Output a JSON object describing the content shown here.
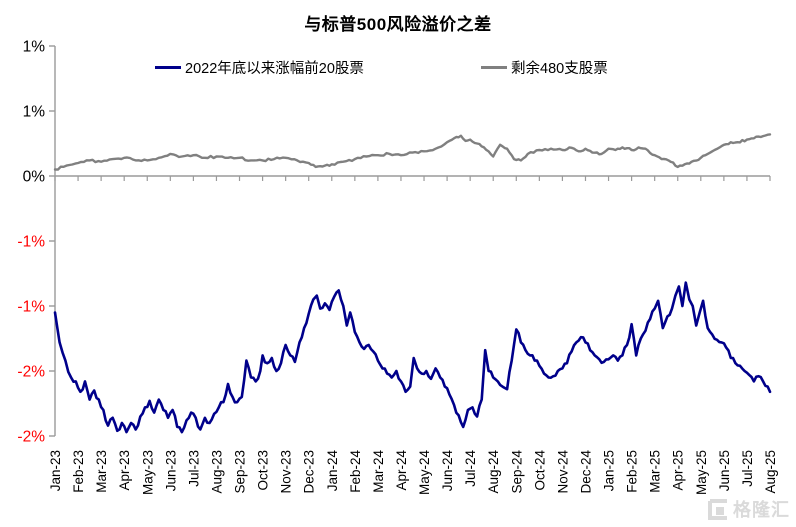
{
  "title": "与标普500风险溢价之差",
  "legend": {
    "items": [
      {
        "label": "2022年底以来涨幅前20股票",
        "color": "#00008B"
      },
      {
        "label": "剩余480支股票",
        "color": "#808080"
      }
    ]
  },
  "watermark": {
    "text": "格隆汇"
  },
  "chart_data": {
    "type": "line",
    "title": "与标普500风险溢价之差",
    "legend_position": "top",
    "grid": false,
    "x_categories": [
      "Jan-23",
      "Feb-23",
      "Mar-23",
      "Apr-23",
      "May-23",
      "Jun-23",
      "Jul-23",
      "Aug-23",
      "Sep-23",
      "Oct-23",
      "Nov-23",
      "Dec-23",
      "Jan-24",
      "Feb-24",
      "Mar-24",
      "Apr-24",
      "May-24",
      "Jun-24",
      "Jul-24",
      "Aug-24",
      "Sep-24",
      "Oct-24",
      "Nov-24",
      "Dec-24",
      "Jan-25",
      "Feb-25",
      "Mar-25",
      "Apr-25",
      "May-25",
      "Jun-25",
      "Jul-25",
      "Aug-25"
    ],
    "y_axis": {
      "min": -2.0,
      "max": 1.0,
      "tick_step": 0.5,
      "unit": "%",
      "axis_color": "#9a9a9a",
      "ticks": [
        {
          "value": 1.0,
          "label": "1%",
          "color": "#000000"
        },
        {
          "value": 0.5,
          "label": "1%",
          "color": "#000000"
        },
        {
          "value": 0.0,
          "label": "0%",
          "color": "#000000"
        },
        {
          "value": -0.5,
          "label": "-1%",
          "color": "#FF0000"
        },
        {
          "value": -1.0,
          "label": "-1%",
          "color": "#FF0000"
        },
        {
          "value": -1.5,
          "label": "-2%",
          "color": "#FF0000"
        },
        {
          "value": -2.0,
          "label": "-2%",
          "color": "#FF0000"
        }
      ]
    },
    "x_axis": {
      "crosses_at_value": 0,
      "tick_interval_months": 1,
      "label_rotation_deg": -90
    },
    "series": [
      {
        "name": "2022年底以来涨幅前20股票",
        "color": "#00008B",
        "width": 2.6,
        "points": [
          [
            0,
            -1.05
          ],
          [
            0.2,
            -1.28
          ],
          [
            0.45,
            -1.42
          ],
          [
            0.7,
            -1.55
          ],
          [
            0.9,
            -1.58
          ],
          [
            1.1,
            -1.66
          ],
          [
            1.3,
            -1.58
          ],
          [
            1.5,
            -1.72
          ],
          [
            1.7,
            -1.65
          ],
          [
            1.9,
            -1.72
          ],
          [
            2.1,
            -1.8
          ],
          [
            2.3,
            -1.92
          ],
          [
            2.5,
            -1.86
          ],
          [
            2.7,
            -1.96
          ],
          [
            2.9,
            -1.9
          ],
          [
            3.1,
            -1.97
          ],
          [
            3.3,
            -1.9
          ],
          [
            3.5,
            -1.95
          ],
          [
            3.7,
            -1.85
          ],
          [
            3.9,
            -1.78
          ],
          [
            4.1,
            -1.73
          ],
          [
            4.3,
            -1.82
          ],
          [
            4.5,
            -1.72
          ],
          [
            4.7,
            -1.8
          ],
          [
            4.9,
            -1.86
          ],
          [
            5.1,
            -1.8
          ],
          [
            5.3,
            -1.93
          ],
          [
            5.5,
            -1.97
          ],
          [
            5.7,
            -1.88
          ],
          [
            5.9,
            -1.82
          ],
          [
            6.1,
            -1.86
          ],
          [
            6.3,
            -1.95
          ],
          [
            6.5,
            -1.86
          ],
          [
            6.7,
            -1.9
          ],
          [
            6.9,
            -1.83
          ],
          [
            7.1,
            -1.78
          ],
          [
            7.3,
            -1.74
          ],
          [
            7.5,
            -1.6
          ],
          [
            7.7,
            -1.7
          ],
          [
            7.9,
            -1.74
          ],
          [
            8.1,
            -1.7
          ],
          [
            8.3,
            -1.42
          ],
          [
            8.5,
            -1.55
          ],
          [
            8.7,
            -1.58
          ],
          [
            8.9,
            -1.5
          ],
          [
            9.0,
            -1.38
          ],
          [
            9.2,
            -1.44
          ],
          [
            9.4,
            -1.4
          ],
          [
            9.6,
            -1.5
          ],
          [
            9.8,
            -1.44
          ],
          [
            10.0,
            -1.3
          ],
          [
            10.2,
            -1.38
          ],
          [
            10.4,
            -1.43
          ],
          [
            10.6,
            -1.28
          ],
          [
            10.8,
            -1.17
          ],
          [
            11.0,
            -1.06
          ],
          [
            11.2,
            -0.95
          ],
          [
            11.35,
            -0.92
          ],
          [
            11.5,
            -1.02
          ],
          [
            11.7,
            -0.98
          ],
          [
            11.9,
            -1.03
          ],
          [
            12.1,
            -0.93
          ],
          [
            12.3,
            -0.88
          ],
          [
            12.5,
            -1.0
          ],
          [
            12.65,
            -1.15
          ],
          [
            12.8,
            -1.05
          ],
          [
            13.0,
            -1.2
          ],
          [
            13.2,
            -1.28
          ],
          [
            13.4,
            -1.33
          ],
          [
            13.6,
            -1.3
          ],
          [
            13.8,
            -1.35
          ],
          [
            14.0,
            -1.42
          ],
          [
            14.2,
            -1.48
          ],
          [
            14.4,
            -1.52
          ],
          [
            14.6,
            -1.55
          ],
          [
            14.8,
            -1.5
          ],
          [
            15.0,
            -1.58
          ],
          [
            15.2,
            -1.66
          ],
          [
            15.4,
            -1.62
          ],
          [
            15.55,
            -1.4
          ],
          [
            15.7,
            -1.48
          ],
          [
            15.9,
            -1.52
          ],
          [
            16.1,
            -1.5
          ],
          [
            16.3,
            -1.56
          ],
          [
            16.5,
            -1.48
          ],
          [
            16.7,
            -1.55
          ],
          [
            16.9,
            -1.62
          ],
          [
            17.1,
            -1.68
          ],
          [
            17.3,
            -1.76
          ],
          [
            17.5,
            -1.84
          ],
          [
            17.7,
            -1.93
          ],
          [
            17.9,
            -1.8
          ],
          [
            18.1,
            -1.78
          ],
          [
            18.3,
            -1.85
          ],
          [
            18.5,
            -1.72
          ],
          [
            18.65,
            -1.34
          ],
          [
            18.8,
            -1.5
          ],
          [
            19.0,
            -1.55
          ],
          [
            19.2,
            -1.58
          ],
          [
            19.4,
            -1.62
          ],
          [
            19.6,
            -1.64
          ],
          [
            19.8,
            -1.42
          ],
          [
            20.0,
            -1.18
          ],
          [
            20.2,
            -1.28
          ],
          [
            20.4,
            -1.34
          ],
          [
            20.6,
            -1.38
          ],
          [
            20.8,
            -1.42
          ],
          [
            21.0,
            -1.46
          ],
          [
            21.2,
            -1.52
          ],
          [
            21.4,
            -1.55
          ],
          [
            21.6,
            -1.54
          ],
          [
            21.8,
            -1.5
          ],
          [
            22.0,
            -1.48
          ],
          [
            22.2,
            -1.44
          ],
          [
            22.4,
            -1.35
          ],
          [
            22.6,
            -1.28
          ],
          [
            22.8,
            -1.24
          ],
          [
            23.0,
            -1.28
          ],
          [
            23.2,
            -1.34
          ],
          [
            23.4,
            -1.38
          ],
          [
            23.6,
            -1.41
          ],
          [
            23.8,
            -1.43
          ],
          [
            24.0,
            -1.41
          ],
          [
            24.2,
            -1.38
          ],
          [
            24.4,
            -1.42
          ],
          [
            24.6,
            -1.38
          ],
          [
            24.8,
            -1.3
          ],
          [
            25.0,
            -1.14
          ],
          [
            25.2,
            -1.38
          ],
          [
            25.4,
            -1.25
          ],
          [
            25.6,
            -1.19
          ],
          [
            25.8,
            -1.1
          ],
          [
            26.0,
            -1.02
          ],
          [
            26.15,
            -0.96
          ],
          [
            26.35,
            -1.17
          ],
          [
            26.55,
            -1.08
          ],
          [
            26.75,
            -1.02
          ],
          [
            26.9,
            -0.92
          ],
          [
            27.05,
            -0.85
          ],
          [
            27.2,
            -1.0
          ],
          [
            27.35,
            -0.82
          ],
          [
            27.5,
            -0.95
          ],
          [
            27.65,
            -1.0
          ],
          [
            27.8,
            -1.15
          ],
          [
            27.95,
            -1.05
          ],
          [
            28.1,
            -0.96
          ],
          [
            28.3,
            -1.17
          ],
          [
            28.5,
            -1.22
          ],
          [
            28.7,
            -1.26
          ],
          [
            28.9,
            -1.28
          ],
          [
            29.1,
            -1.32
          ],
          [
            29.3,
            -1.4
          ],
          [
            29.5,
            -1.44
          ],
          [
            29.7,
            -1.46
          ],
          [
            29.9,
            -1.5
          ],
          [
            30.1,
            -1.53
          ],
          [
            30.3,
            -1.58
          ],
          [
            30.5,
            -1.54
          ],
          [
            30.7,
            -1.58
          ],
          [
            30.9,
            -1.62
          ],
          [
            31,
            -1.66
          ]
        ]
      },
      {
        "name": "剩余480支股票",
        "color": "#808080",
        "width": 2.4,
        "points": [
          [
            0,
            0.05
          ],
          [
            0.5,
            0.08
          ],
          [
            1,
            0.1
          ],
          [
            1.5,
            0.12
          ],
          [
            2,
            0.11
          ],
          [
            2.5,
            0.13
          ],
          [
            3,
            0.14
          ],
          [
            3.5,
            0.12
          ],
          [
            4,
            0.12
          ],
          [
            4.5,
            0.14
          ],
          [
            5,
            0.17
          ],
          [
            5.5,
            0.15
          ],
          [
            6,
            0.16
          ],
          [
            6.5,
            0.14
          ],
          [
            7,
            0.15
          ],
          [
            7.5,
            0.14
          ],
          [
            8,
            0.14
          ],
          [
            8.5,
            0.12
          ],
          [
            9,
            0.12
          ],
          [
            9.5,
            0.13
          ],
          [
            10,
            0.14
          ],
          [
            10.5,
            0.12
          ],
          [
            11,
            0.1
          ],
          [
            11.3,
            0.07
          ],
          [
            11.7,
            0.08
          ],
          [
            12,
            0.09
          ],
          [
            12.5,
            0.11
          ],
          [
            13,
            0.13
          ],
          [
            13.5,
            0.15
          ],
          [
            14,
            0.16
          ],
          [
            14.5,
            0.17
          ],
          [
            15,
            0.16
          ],
          [
            15.5,
            0.18
          ],
          [
            16,
            0.19
          ],
          [
            16.5,
            0.21
          ],
          [
            17,
            0.26
          ],
          [
            17.3,
            0.29
          ],
          [
            17.6,
            0.31
          ],
          [
            17.8,
            0.27
          ],
          [
            18,
            0.28
          ],
          [
            18.3,
            0.25
          ],
          [
            18.6,
            0.22
          ],
          [
            19,
            0.15
          ],
          [
            19.3,
            0.24
          ],
          [
            19.6,
            0.21
          ],
          [
            19.9,
            0.13
          ],
          [
            20.2,
            0.12
          ],
          [
            20.5,
            0.17
          ],
          [
            21,
            0.2
          ],
          [
            21.5,
            0.21
          ],
          [
            22,
            0.2
          ],
          [
            22.3,
            0.22
          ],
          [
            22.7,
            0.19
          ],
          [
            23,
            0.21
          ],
          [
            23.3,
            0.18
          ],
          [
            23.7,
            0.17
          ],
          [
            24,
            0.21
          ],
          [
            24.3,
            0.2
          ],
          [
            24.6,
            0.22
          ],
          [
            25,
            0.2
          ],
          [
            25.3,
            0.22
          ],
          [
            25.6,
            0.21
          ],
          [
            26,
            0.16
          ],
          [
            26.3,
            0.13
          ],
          [
            26.6,
            0.12
          ],
          [
            27,
            0.07
          ],
          [
            27.3,
            0.09
          ],
          [
            27.6,
            0.11
          ],
          [
            28,
            0.14
          ],
          [
            28.3,
            0.17
          ],
          [
            28.6,
            0.2
          ],
          [
            29,
            0.24
          ],
          [
            29.3,
            0.26
          ],
          [
            29.6,
            0.26
          ],
          [
            30,
            0.28
          ],
          [
            30.3,
            0.29
          ],
          [
            30.6,
            0.3
          ],
          [
            31,
            0.32
          ]
        ]
      }
    ]
  }
}
